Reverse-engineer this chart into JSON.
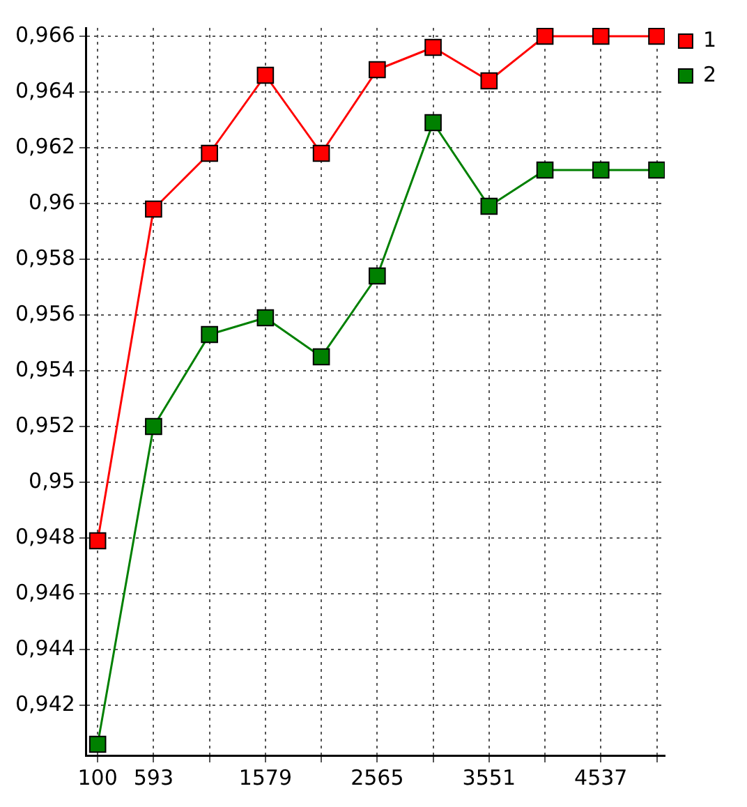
{
  "chart_data": {
    "type": "line",
    "x": [
      100,
      593,
      1086,
      1579,
      2072,
      2565,
      3058,
      3551,
      4044,
      4537,
      5030
    ],
    "series": [
      {
        "name": "1",
        "color": "#ff0000",
        "values": [
          0.9479,
          0.9598,
          0.9618,
          0.9646,
          0.9618,
          0.9648,
          0.9656,
          0.9644,
          0.966,
          0.966,
          0.966
        ]
      },
      {
        "name": "2",
        "color": "#008000",
        "values": [
          0.9406,
          0.952,
          0.9553,
          0.9559,
          0.9545,
          0.9574,
          0.9629,
          0.9599,
          0.9612,
          0.9612,
          0.9612
        ]
      }
    ],
    "xlim": [
      0,
      5100
    ],
    "xticks": [
      100,
      593,
      {
        "value": 1086,
        "label": null
      },
      1579,
      {
        "value": 2072,
        "label": null
      },
      2565,
      {
        "value": 3058,
        "label": null
      },
      3551,
      {
        "value": 4044,
        "label": null
      },
      4537,
      {
        "value": 5030,
        "label": null
      }
    ],
    "ylim": [
      0.9402,
      0.9663
    ],
    "yticks": [
      {
        "value": 0.942,
        "label": "0,942"
      },
      {
        "value": 0.944,
        "label": "0,944"
      },
      {
        "value": 0.946,
        "label": "0,946"
      },
      {
        "value": 0.948,
        "label": "0,948"
      },
      {
        "value": 0.95,
        "label": "0,95"
      },
      {
        "value": 0.952,
        "label": "0,952"
      },
      {
        "value": 0.954,
        "label": "0,954"
      },
      {
        "value": 0.956,
        "label": "0,956"
      },
      {
        "value": 0.958,
        "label": "0,958"
      },
      {
        "value": 0.96,
        "label": "0,96"
      },
      {
        "value": 0.962,
        "label": "0,962"
      },
      {
        "value": 0.964,
        "label": "0,964"
      },
      {
        "value": 0.966,
        "label": "0,966"
      }
    ],
    "grid": true,
    "legend": "top right",
    "marker": "square",
    "line_style": "solid"
  }
}
